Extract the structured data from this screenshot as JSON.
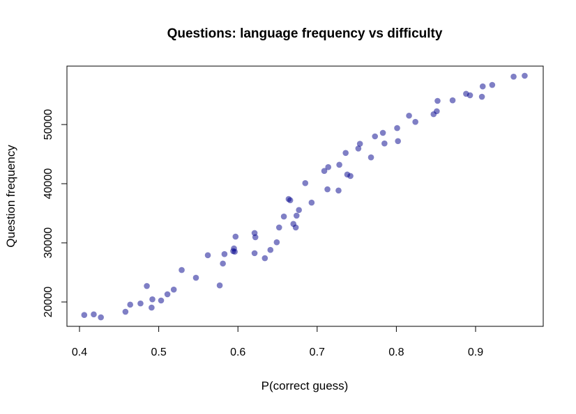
{
  "chart_data": {
    "type": "scatter",
    "title": "Questions: language frequency vs difficulty",
    "xlabel": "P(correct guess)",
    "ylabel": "Question frequency",
    "xlim": [
      0.38,
      0.98
    ],
    "ylim": [
      15800,
      60000
    ],
    "xticks": [
      "0.4",
      "0.5",
      "0.6",
      "0.7",
      "0.8",
      "0.9"
    ],
    "yticks": [
      "20000",
      "30000",
      "40000",
      "50000"
    ],
    "grid": false,
    "legend": "none",
    "point_color": "#00008b",
    "points": [
      [
        0.406,
        17800
      ],
      [
        0.418,
        17900
      ],
      [
        0.427,
        17400
      ],
      [
        0.458,
        18350
      ],
      [
        0.464,
        19550
      ],
      [
        0.477,
        19750
      ],
      [
        0.485,
        22700
      ],
      [
        0.492,
        20450
      ],
      [
        0.491,
        19050
      ],
      [
        0.503,
        20250
      ],
      [
        0.511,
        21300
      ],
      [
        0.519,
        22100
      ],
      [
        0.529,
        25400
      ],
      [
        0.547,
        24100
      ],
      [
        0.562,
        27900
      ],
      [
        0.577,
        22800
      ],
      [
        0.581,
        26500
      ],
      [
        0.583,
        28100
      ],
      [
        0.594,
        28600
      ],
      [
        0.595,
        29050
      ],
      [
        0.596,
        28500
      ],
      [
        0.597,
        31050
      ],
      [
        0.621,
        28250
      ],
      [
        0.621,
        31650
      ],
      [
        0.622,
        30950
      ],
      [
        0.634,
        27400
      ],
      [
        0.641,
        28800
      ],
      [
        0.649,
        30100
      ],
      [
        0.652,
        32600
      ],
      [
        0.658,
        34450
      ],
      [
        0.664,
        37400
      ],
      [
        0.666,
        37200
      ],
      [
        0.67,
        33200
      ],
      [
        0.673,
        32600
      ],
      [
        0.674,
        34600
      ],
      [
        0.677,
        35550
      ],
      [
        0.685,
        40100
      ],
      [
        0.693,
        36800
      ],
      [
        0.709,
        42150
      ],
      [
        0.714,
        42800
      ],
      [
        0.713,
        39050
      ],
      [
        0.728,
        43200
      ],
      [
        0.727,
        38850
      ],
      [
        0.736,
        45200
      ],
      [
        0.738,
        41550
      ],
      [
        0.742,
        41300
      ],
      [
        0.752,
        45950
      ],
      [
        0.754,
        46750
      ],
      [
        0.768,
        44450
      ],
      [
        0.773,
        48000
      ],
      [
        0.783,
        48600
      ],
      [
        0.785,
        46800
      ],
      [
        0.801,
        49400
      ],
      [
        0.802,
        47200
      ],
      [
        0.816,
        51500
      ],
      [
        0.824,
        50450
      ],
      [
        0.847,
        51750
      ],
      [
        0.851,
        52250
      ],
      [
        0.852,
        54000
      ],
      [
        0.871,
        54100
      ],
      [
        0.888,
        55200
      ],
      [
        0.893,
        54950
      ],
      [
        0.908,
        54700
      ],
      [
        0.909,
        56450
      ],
      [
        0.921,
        56700
      ],
      [
        0.948,
        58100
      ],
      [
        0.962,
        58250
      ]
    ]
  }
}
